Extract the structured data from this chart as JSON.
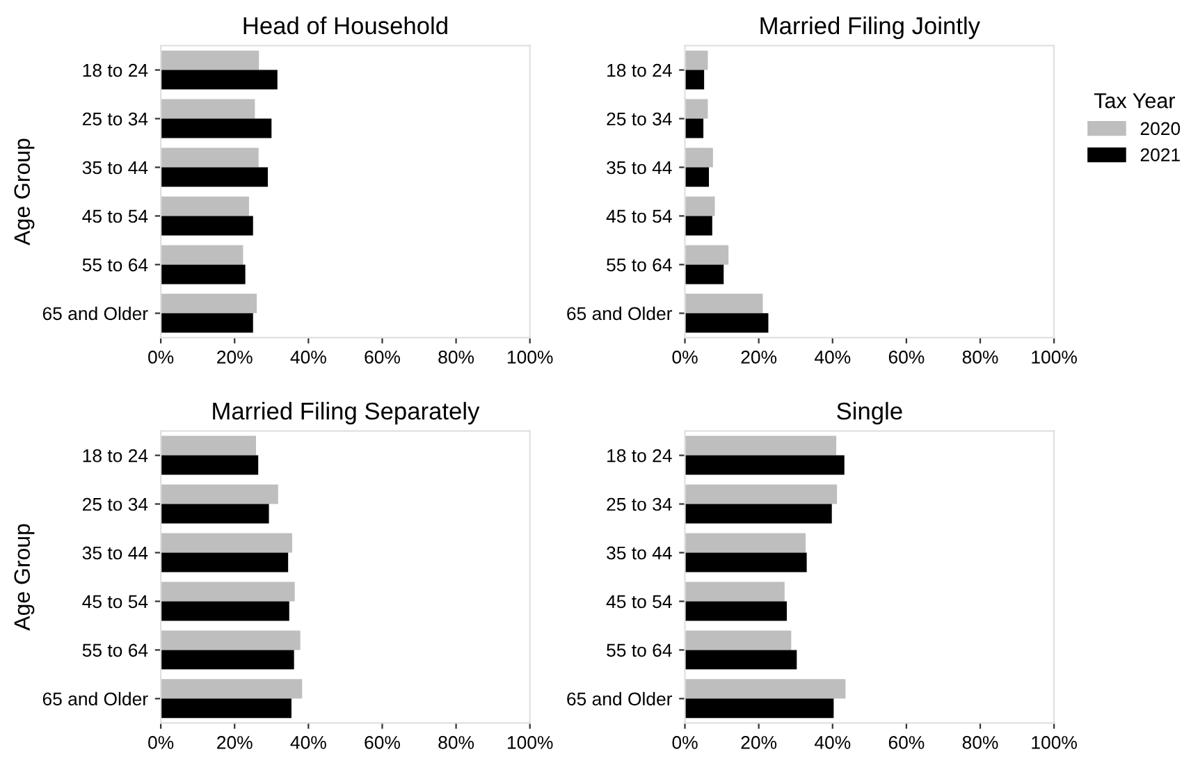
{
  "chart_data": [
    {
      "type": "bar",
      "orientation": "horizontal",
      "title": "Head of Household",
      "ylabel": "Age Group",
      "legend_title": "Tax Year",
      "legend": "right",
      "categories": [
        "18 to 24",
        "25 to 34",
        "35 to 44",
        "45 to 54",
        "55 to 64",
        "65 and Older"
      ],
      "series": [
        {
          "name": "2020",
          "color": "#bebebe",
          "values": [
            26.6,
            25.5,
            26.5,
            23.9,
            22.3,
            26
          ]
        },
        {
          "name": "2021",
          "color": "#000000",
          "values": [
            31.6,
            30,
            29,
            25,
            22.9,
            25
          ]
        }
      ],
      "xlim": [
        0,
        100
      ],
      "xticks": [
        {
          "value": 0,
          "label": "0%"
        },
        {
          "value": 20,
          "label": "20%"
        },
        {
          "value": 40,
          "label": "40%"
        },
        {
          "value": 60,
          "label": "60%"
        },
        {
          "value": 80,
          "label": "80%"
        },
        {
          "value": 100,
          "label": "100%"
        }
      ],
      "grid": false
    },
    {
      "type": "bar",
      "orientation": "horizontal",
      "title": "Married Filing Jointly",
      "categories": [
        "18 to 24",
        "25 to 34",
        "35 to 44",
        "45 to 54",
        "55 to 64",
        "65 and Older"
      ],
      "series": [
        {
          "name": "2020",
          "color": "#bebebe",
          "values": [
            6.2,
            6.2,
            7.6,
            8.1,
            11.8,
            21.1
          ]
        },
        {
          "name": "2021",
          "color": "#000000",
          "values": [
            5.2,
            5,
            6.5,
            7.4,
            10.5,
            22.6
          ]
        }
      ],
      "xlim": [
        0,
        100
      ],
      "xticks": [
        {
          "value": 0,
          "label": "0%"
        },
        {
          "value": 20,
          "label": "20%"
        },
        {
          "value": 40,
          "label": "40%"
        },
        {
          "value": 60,
          "label": "60%"
        },
        {
          "value": 80,
          "label": "80%"
        },
        {
          "value": 100,
          "label": "100%"
        }
      ],
      "grid": false
    },
    {
      "type": "bar",
      "orientation": "horizontal",
      "title": "Married Filing Separately",
      "ylabel": "Age Group",
      "categories": [
        "18 to 24",
        "25 to 34",
        "35 to 44",
        "45 to 54",
        "55 to 64",
        "65 and Older"
      ],
      "series": [
        {
          "name": "2020",
          "color": "#bebebe",
          "values": [
            25.8,
            31.8,
            35.6,
            36.3,
            37.8,
            38.3
          ]
        },
        {
          "name": "2021",
          "color": "#000000",
          "values": [
            26.4,
            29.3,
            34.5,
            34.8,
            36.1,
            35.4
          ]
        }
      ],
      "xlim": [
        0,
        100
      ],
      "xticks": [
        {
          "value": 0,
          "label": "0%"
        },
        {
          "value": 20,
          "label": "20%"
        },
        {
          "value": 40,
          "label": "40%"
        },
        {
          "value": 60,
          "label": "60%"
        },
        {
          "value": 80,
          "label": "80%"
        },
        {
          "value": 100,
          "label": "100%"
        }
      ],
      "grid": false
    },
    {
      "type": "bar",
      "orientation": "horizontal",
      "title": "Single",
      "categories": [
        "18 to 24",
        "25 to 34",
        "35 to 44",
        "45 to 54",
        "55 to 64",
        "65 and Older"
      ],
      "series": [
        {
          "name": "2020",
          "color": "#bebebe",
          "values": [
            41,
            41.2,
            32.7,
            27,
            28.8,
            43.5
          ]
        },
        {
          "name": "2021",
          "color": "#000000",
          "values": [
            43.2,
            39.8,
            33,
            27.6,
            30.3,
            40.3
          ]
        }
      ],
      "xlim": [
        0,
        100
      ],
      "xticks": [
        {
          "value": 0,
          "label": "0%"
        },
        {
          "value": 20,
          "label": "20%"
        },
        {
          "value": 40,
          "label": "40%"
        },
        {
          "value": 60,
          "label": "60%"
        },
        {
          "value": 80,
          "label": "80%"
        },
        {
          "value": 100,
          "label": "100%"
        }
      ],
      "grid": false
    }
  ]
}
